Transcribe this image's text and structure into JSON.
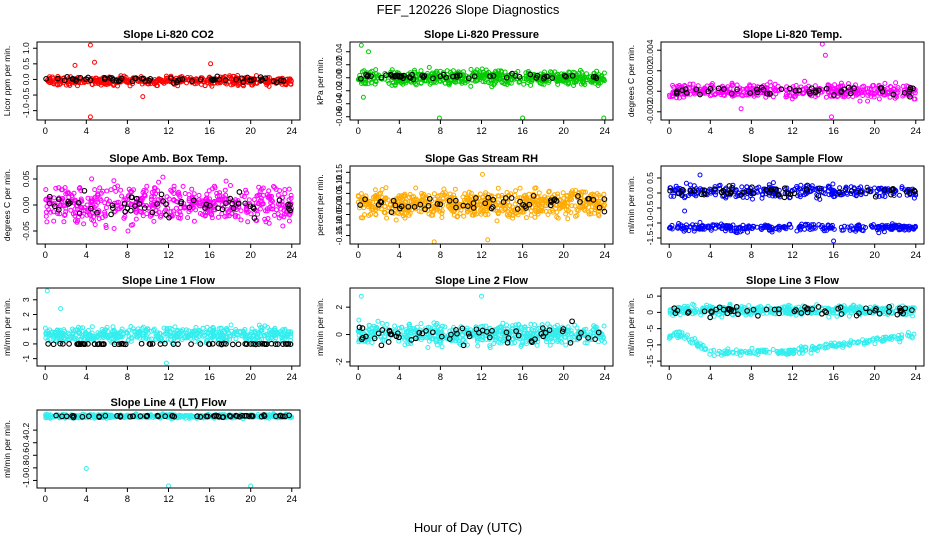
{
  "figure": {
    "title": "FEF_120226  Slope Diagnostics",
    "xlabel": "Hour of Day (UTC)"
  },
  "chart_data": [
    {
      "type": "scatter",
      "title": "Slope Li-820 CO2",
      "ylabel": "Licor ppm per min.",
      "xlim": [
        -0.8,
        24.8
      ],
      "ylim": [
        -1.3,
        1.2
      ],
      "xticks": [
        0,
        4,
        8,
        12,
        16,
        20,
        24
      ],
      "xtick_labels": [
        "0",
        "4",
        "8",
        "12",
        "16",
        "20",
        "24"
      ],
      "yticks": [
        -1.0,
        -0.5,
        0.0,
        0.5,
        1.0
      ],
      "ytick_labels": [
        "-1.0",
        "-0.5",
        "0.0",
        "0.5",
        "1.0"
      ],
      "series": [
        {
          "name": "samples",
          "color": "#ff0000",
          "bands": [
            {
              "center": -0.05,
              "spread": 0.14
            }
          ],
          "count": 420,
          "outliers": [
            {
              "x": 4.4,
              "y": 1.1
            },
            {
              "x": 4.4,
              "y": -1.2
            },
            {
              "x": 4.8,
              "y": 0.55
            },
            {
              "x": 2.9,
              "y": 0.45
            },
            {
              "x": 9.5,
              "y": -0.55
            },
            {
              "x": 16.1,
              "y": 0.5
            }
          ]
        },
        {
          "name": "averages",
          "color": "#000000",
          "bands": [
            {
              "center": 0.0,
              "spread": 0.08
            }
          ],
          "count": 60,
          "outliers": []
        }
      ]
    },
    {
      "type": "scatter",
      "title": "Slope Li-820 Pressure",
      "ylabel": "kPa per min.",
      "xlim": [
        -0.8,
        24.8
      ],
      "ylim": [
        -0.065,
        0.055
      ],
      "xticks": [
        0,
        4,
        8,
        12,
        16,
        20,
        24
      ],
      "xtick_labels": [
        "0",
        "4",
        "8",
        "12",
        "16",
        "20",
        "24"
      ],
      "yticks": [
        -0.06,
        -0.04,
        -0.02,
        0.0,
        0.02,
        0.04
      ],
      "ytick_labels": [
        "-0.06",
        "-0.04",
        "-0.02",
        "0.00",
        "0.02",
        "0.04"
      ],
      "series": [
        {
          "name": "samples",
          "color": "#00cc00",
          "bands": [
            {
              "center": 0.0,
              "spread": 0.011
            }
          ],
          "count": 520,
          "outliers": [
            {
              "x": 0.3,
              "y": 0.05
            },
            {
              "x": 7.9,
              "y": -0.062
            },
            {
              "x": 16.0,
              "y": -0.062
            },
            {
              "x": 23.9,
              "y": -0.062
            },
            {
              "x": 0.5,
              "y": -0.03
            },
            {
              "x": 1.0,
              "y": 0.04
            }
          ]
        },
        {
          "name": "averages",
          "color": "#000000",
          "bands": [
            {
              "center": 0.002,
              "spread": 0.004
            }
          ],
          "count": 55,
          "outliers": []
        }
      ]
    },
    {
      "type": "scatter",
      "title": "Slope Li-820 Temp.",
      "ylabel": "degrees C per min.",
      "xlim": [
        -0.8,
        24.8
      ],
      "ylim": [
        -0.0028,
        0.0048
      ],
      "xticks": [
        0,
        4,
        8,
        12,
        16,
        20,
        24
      ],
      "xtick_labels": [
        "0",
        "4",
        "8",
        "12",
        "16",
        "20",
        "24"
      ],
      "yticks": [
        -0.002,
        0.0,
        0.002,
        0.004
      ],
      "ytick_labels": [
        "-0.002",
        "0.000",
        "0.002",
        "0.004"
      ],
      "series": [
        {
          "name": "samples",
          "color": "#ff00ff",
          "bands": [
            {
              "center": 0.0,
              "spread": 0.0007
            }
          ],
          "count": 420,
          "outliers": [
            {
              "x": 14.9,
              "y": 0.0046
            },
            {
              "x": 15.2,
              "y": 0.0035
            },
            {
              "x": 15.8,
              "y": -0.0025
            },
            {
              "x": 7.0,
              "y": -0.0017
            }
          ]
        },
        {
          "name": "averages",
          "color": "#000000",
          "bands": [
            {
              "center": 0.0,
              "spread": 0.0004
            }
          ],
          "count": 50,
          "outliers": []
        }
      ]
    },
    {
      "type": "scatter",
      "title": "Slope Amb. Box Temp.",
      "ylabel": "degrees C per min.",
      "xlim": [
        -0.8,
        24.8
      ],
      "ylim": [
        -0.075,
        0.075
      ],
      "xticks": [
        0,
        4,
        8,
        12,
        16,
        20,
        24
      ],
      "xtick_labels": [
        "0",
        "4",
        "8",
        "12",
        "16",
        "20",
        "24"
      ],
      "yticks": [
        -0.05,
        0.0,
        0.05
      ],
      "ytick_labels": [
        "-0.05",
        "0.00",
        "0.05"
      ],
      "series": [
        {
          "name": "samples",
          "color": "#ff00ff",
          "bands": [
            {
              "center": 0.0,
              "spread": 0.035
            }
          ],
          "count": 520,
          "outliers": []
        },
        {
          "name": "averages",
          "color": "#000000",
          "bands": [
            {
              "center": 0.0,
              "spread": 0.025
            }
          ],
          "count": 60,
          "outliers": []
        }
      ]
    },
    {
      "type": "scatter",
      "title": "Slope Gas Stream RH",
      "ylabel": "percent per min.",
      "xlim": [
        -0.8,
        24.8
      ],
      "ylim": [
        -0.19,
        0.18
      ],
      "xticks": [
        0,
        4,
        8,
        12,
        16,
        20,
        24
      ],
      "xtick_labels": [
        "0",
        "4",
        "8",
        "12",
        "16",
        "20",
        "24"
      ],
      "yticks": [
        -0.15,
        -0.1,
        -0.05,
        0.0,
        0.05,
        0.1,
        0.15
      ],
      "ytick_labels": [
        "-0.15",
        "-0.10",
        "-0.05",
        "0.00",
        "0.05",
        "0.10",
        "0.15"
      ],
      "series": [
        {
          "name": "samples",
          "color": "#ffaa00",
          "bands": [
            {
              "center": 0.0,
              "spread": 0.06
            }
          ],
          "count": 650,
          "outliers": [
            {
              "x": 7.4,
              "y": -0.18
            },
            {
              "x": 12.6,
              "y": -0.17
            },
            {
              "x": 12.1,
              "y": 0.14
            }
          ]
        },
        {
          "name": "averages",
          "color": "#000000",
          "bands": [
            {
              "center": 0.0,
              "spread": 0.04
            }
          ],
          "count": 55,
          "outliers": []
        }
      ]
    },
    {
      "type": "scatter",
      "title": "Slope Sample Flow",
      "ylabel": "ml/min per min.",
      "xlim": [
        -0.8,
        24.8
      ],
      "ylim": [
        -1.7,
        0.9
      ],
      "xticks": [
        0,
        4,
        8,
        12,
        16,
        20,
        24
      ],
      "xtick_labels": [
        "0",
        "4",
        "8",
        "12",
        "16",
        "20",
        "24"
      ],
      "yticks": [
        -1.5,
        -1.0,
        -0.5,
        0.0,
        0.5
      ],
      "ytick_labels": [
        "-1.5",
        "-1.0",
        "-0.5",
        "0.0",
        "0.5"
      ],
      "series": [
        {
          "name": "samples",
          "color": "#0000ff",
          "bands": [
            {
              "center": 0.05,
              "spread": 0.2
            },
            {
              "center": -1.15,
              "spread": 0.12
            }
          ],
          "count": 560,
          "outliers": [
            {
              "x": 16.0,
              "y": -1.6
            },
            {
              "x": 1.5,
              "y": -0.6
            },
            {
              "x": 3.0,
              "y": 0.6
            }
          ]
        },
        {
          "name": "averages",
          "color": "#000000",
          "bands": [
            {
              "center": 0.05,
              "spread": 0.15
            }
          ],
          "count": 60,
          "outliers": []
        }
      ]
    },
    {
      "type": "scatter",
      "title": "Slope Line 1 Flow",
      "ylabel": "ml/min per min.",
      "xlim": [
        -0.8,
        24.8
      ],
      "ylim": [
        -1.5,
        3.8
      ],
      "xticks": [
        0,
        4,
        8,
        12,
        16,
        20,
        24
      ],
      "xtick_labels": [
        "0",
        "4",
        "8",
        "12",
        "16",
        "20",
        "24"
      ],
      "yticks": [
        -1,
        0,
        1,
        2,
        3
      ],
      "ytick_labels": [
        "-1",
        "0",
        "1",
        "2",
        "3"
      ],
      "series": [
        {
          "name": "samples",
          "color": "#33eeee",
          "bands": [
            {
              "center": 0.6,
              "spread": 0.5
            }
          ],
          "count": 520,
          "outliers": [
            {
              "x": 0.2,
              "y": 3.6
            },
            {
              "x": 11.8,
              "y": -1.3
            },
            {
              "x": 1.5,
              "y": 2.4
            }
          ]
        },
        {
          "name": "averages",
          "color": "#000000",
          "bands": [
            {
              "center": 0.0,
              "spread": 0.03
            }
          ],
          "count": 70,
          "outliers": []
        }
      ]
    },
    {
      "type": "scatter",
      "title": "Slope Line 2 Flow",
      "ylabel": "ml/min per min.",
      "xlim": [
        -0.8,
        24.8
      ],
      "ylim": [
        -2.3,
        3.4
      ],
      "xticks": [
        0,
        4,
        8,
        12,
        16,
        20,
        24
      ],
      "xtick_labels": [
        "0",
        "4",
        "8",
        "12",
        "16",
        "20",
        "24"
      ],
      "yticks": [
        -2,
        0,
        2
      ],
      "ytick_labels": [
        "-2",
        "0",
        "2"
      ],
      "series": [
        {
          "name": "samples",
          "color": "#33eeee",
          "bands": [
            {
              "center": 0.0,
              "spread": 0.7
            }
          ],
          "count": 560,
          "outliers": [
            {
              "x": 0.3,
              "y": 2.8
            },
            {
              "x": 12.0,
              "y": 2.8
            }
          ]
        },
        {
          "name": "averages",
          "color": "#000000",
          "bands": [
            {
              "center": 0.0,
              "spread": 0.8
            }
          ],
          "count": 60,
          "outliers": []
        }
      ]
    },
    {
      "type": "scatter",
      "title": "Slope Line 3 Flow",
      "ylabel": "ml/min per min.",
      "xlim": [
        -0.8,
        24.8
      ],
      "ylim": [
        -16.5,
        7.5
      ],
      "xticks": [
        0,
        4,
        8,
        12,
        16,
        20,
        24
      ],
      "xtick_labels": [
        "0",
        "4",
        "8",
        "12",
        "16",
        "20",
        "24"
      ],
      "yticks": [
        -15,
        -10,
        -5,
        0,
        5
      ],
      "ytick_labels": [
        "-15",
        "-10",
        "-5",
        "0",
        "5"
      ],
      "series": [
        {
          "name": "samples",
          "color": "#33eeee",
          "bands": [
            {
              "center": 0.5,
              "spread": 1.5
            }
          ],
          "count": 420,
          "outliers": [
            {
              "x": 1.0,
              "y": -6.0
            },
            {
              "x": 1.5,
              "y": -8.0
            }
          ]
        },
        {
          "name": "samples-trend",
          "color": "#33eeee",
          "trend": [
            {
              "x": 1.5,
              "y": -7.0
            },
            {
              "x": 4.0,
              "y": -12.5
            },
            {
              "x": 12.0,
              "y": -12.0
            },
            {
              "x": 24.0,
              "y": -7.0
            }
          ],
          "spread": 1.0,
          "count": 230,
          "outliers": []
        },
        {
          "name": "averages",
          "color": "#000000",
          "bands": [
            {
              "center": 0.5,
              "spread": 1.5
            }
          ],
          "count": 60,
          "outliers": []
        }
      ]
    },
    {
      "type": "scatter",
      "title": "Slope Line 4 (LT) Flow",
      "ylabel": "ml/min per min.",
      "xlim": [
        -0.8,
        24.8
      ],
      "ylim": [
        -1.12,
        0.12
      ],
      "xticks": [
        0,
        4,
        8,
        12,
        16,
        20,
        24
      ],
      "xtick_labels": [
        "0",
        "4",
        "8",
        "12",
        "16",
        "20",
        "24"
      ],
      "yticks": [
        -1.0,
        -0.8,
        -0.6,
        -0.4,
        -0.2
      ],
      "ytick_labels": [
        "-1.0",
        "-0.8",
        "-0.6",
        "-0.4",
        "-0.2"
      ],
      "series": [
        {
          "name": "samples",
          "color": "#33eeee",
          "bands": [
            {
              "center": 0.02,
              "spread": 0.03
            }
          ],
          "count": 520,
          "outliers": [
            {
              "x": 4.0,
              "y": -0.81
            },
            {
              "x": 12.0,
              "y": -1.1
            },
            {
              "x": 20.0,
              "y": -1.1
            }
          ]
        },
        {
          "name": "averages",
          "color": "#000000",
          "bands": [
            {
              "center": 0.02,
              "spread": 0.015
            }
          ],
          "count": 60,
          "outliers": []
        }
      ]
    }
  ]
}
